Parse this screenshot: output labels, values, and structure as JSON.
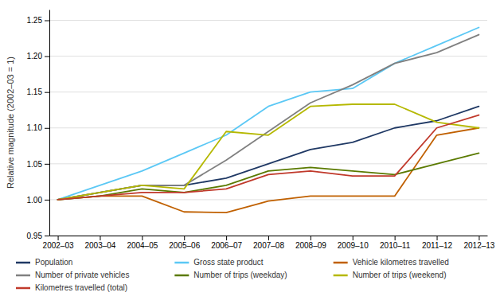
{
  "chart_data": {
    "type": "line",
    "y_label": "Relative magnitude (2002–03 = 1)",
    "categories": [
      "2002–03",
      "2003–04",
      "2004–05",
      "2005–06",
      "2006–07",
      "2007–08",
      "2008–09",
      "2009–10",
      "2010–11",
      "2011–12",
      "2012–13"
    ],
    "series": [
      {
        "name": "Population",
        "color": "#1f3864",
        "values": [
          1.0,
          1.01,
          1.02,
          1.02,
          1.03,
          1.05,
          1.07,
          1.08,
          1.1,
          1.11,
          1.13
        ]
      },
      {
        "name": "Gross state product",
        "color": "#5bc8f5",
        "values": [
          1.0,
          1.02,
          1.04,
          1.065,
          1.09,
          1.13,
          1.15,
          1.155,
          1.19,
          1.215,
          1.24
        ]
      },
      {
        "name": "Vehicle kilometres travelled",
        "color": "#c06000",
        "values": [
          1.0,
          1.005,
          1.005,
          0.983,
          0.982,
          0.998,
          1.005,
          1.005,
          1.005,
          1.09,
          1.1
        ]
      },
      {
        "name": "Number of private vehicles",
        "color": "#808080",
        "values": [
          1.0,
          1.01,
          1.02,
          1.02,
          1.055,
          1.095,
          1.135,
          1.16,
          1.19,
          1.205,
          1.23
        ]
      },
      {
        "name": "Number of trips (weekday)",
        "color": "#5a7a00",
        "values": [
          1.0,
          1.005,
          1.015,
          1.01,
          1.02,
          1.04,
          1.045,
          1.04,
          1.035,
          1.05,
          1.065
        ]
      },
      {
        "name": "Number of trips (weekend)",
        "color": "#b5b800",
        "values": [
          1.0,
          1.01,
          1.02,
          1.015,
          1.095,
          1.09,
          1.13,
          1.133,
          1.133,
          1.108,
          1.1
        ]
      },
      {
        "name": "Kilometres travelled (total)",
        "color": "#c0392b",
        "values": [
          1.0,
          1.005,
          1.01,
          1.01,
          1.015,
          1.035,
          1.04,
          1.033,
          1.033,
          1.1,
          1.118
        ]
      }
    ],
    "ylim": [
      0.95,
      1.265
    ],
    "yticks": [
      0.95,
      {
        "value": 1.0,
        "label": "1.00"
      },
      1.05,
      {
        "value": 1.1,
        "label": "1.10"
      },
      1.15,
      {
        "value": 1.2,
        "label": "1.20"
      },
      1.25
    ],
    "grid": true,
    "legend": "bottom"
  }
}
